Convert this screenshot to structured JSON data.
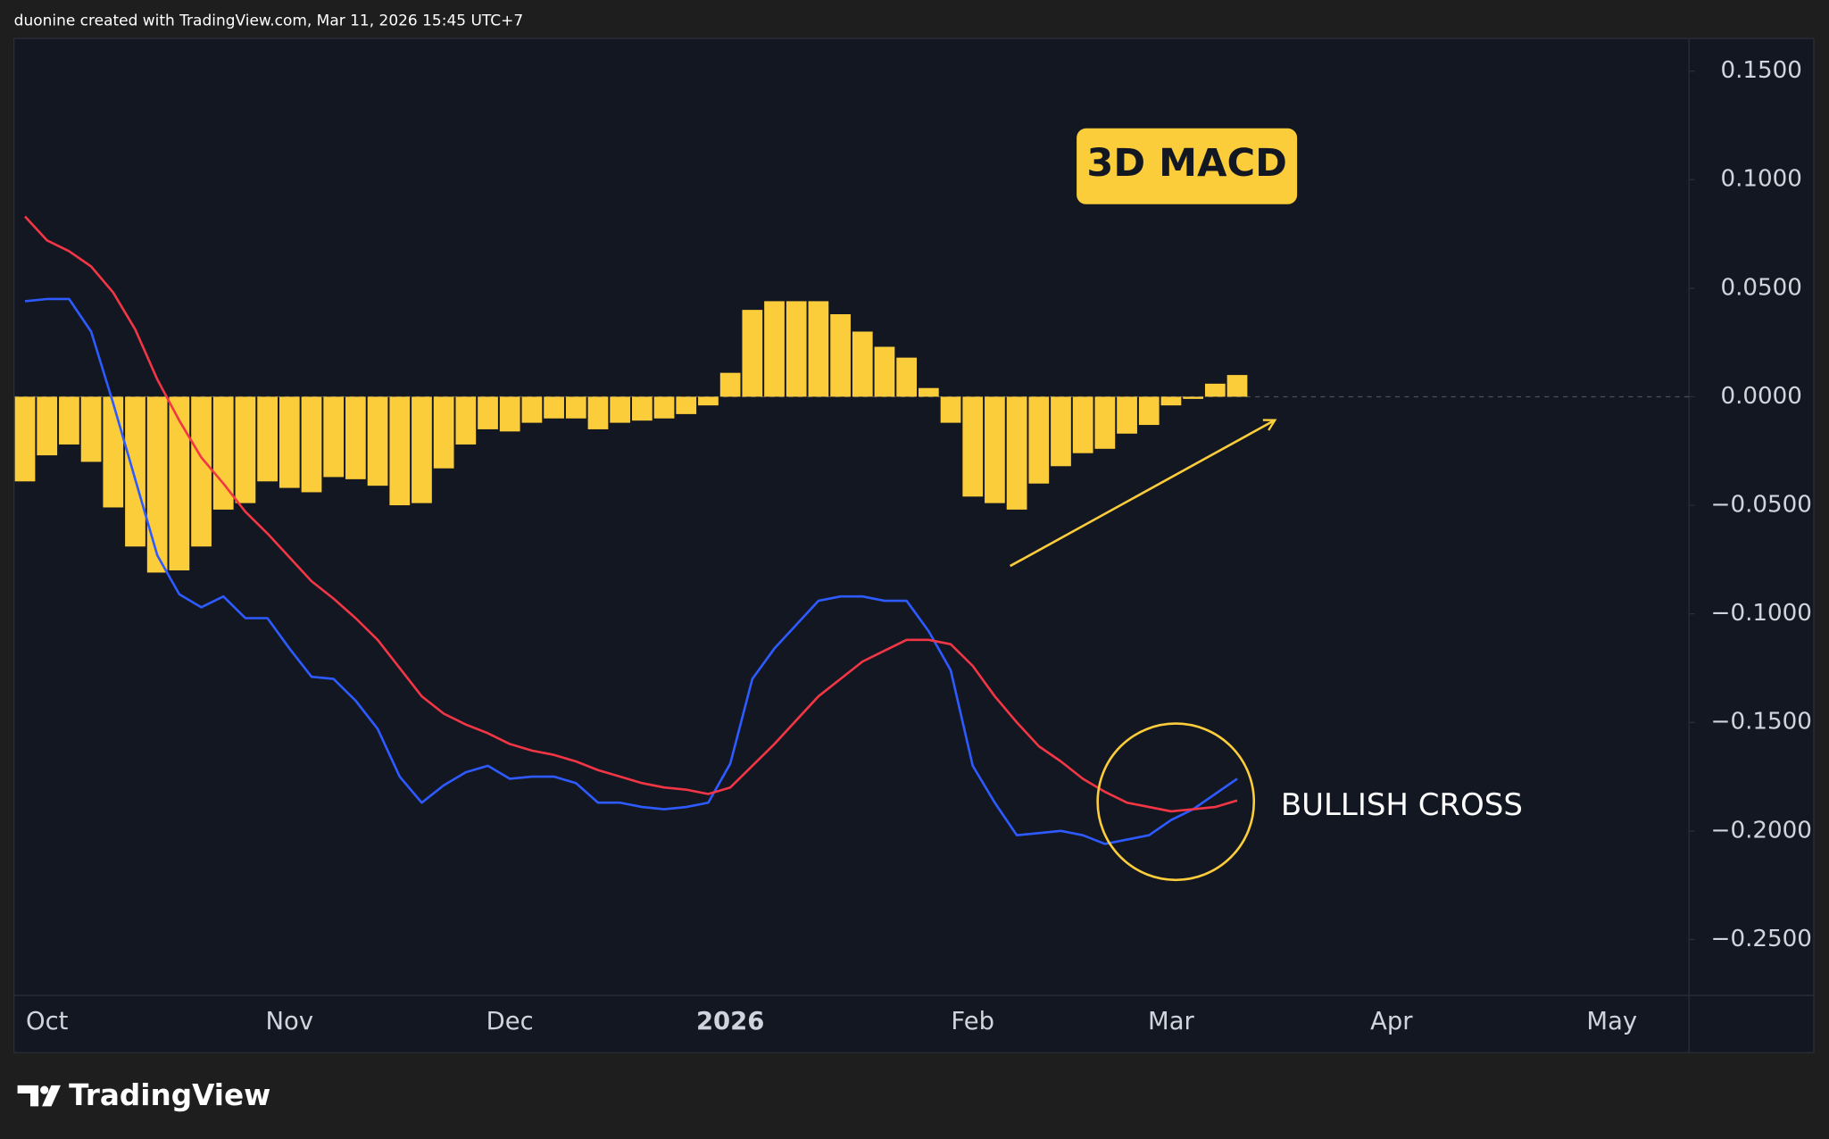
{
  "header": "duonine created with TradingView.com, Mar 11, 2026 15:45 UTC+7",
  "brand": "TradingView",
  "chart_data": {
    "type": "combo",
    "categories": [
      null,
      "Oct",
      null,
      null,
      null,
      null,
      null,
      null,
      null,
      null,
      null,
      null,
      "Nov",
      null,
      null,
      null,
      null,
      null,
      null,
      null,
      null,
      null,
      "Dec",
      null,
      null,
      null,
      null,
      null,
      null,
      null,
      null,
      null,
      "2026",
      null,
      null,
      null,
      null,
      null,
      null,
      null,
      null,
      null,
      null,
      "Feb",
      null,
      null,
      null,
      null,
      null,
      null,
      null,
      null,
      "Mar",
      null,
      null,
      null,
      null,
      null,
      null,
      null,
      null,
      null,
      "Apr",
      null,
      null,
      null,
      null,
      null,
      null,
      null,
      null,
      null,
      "May",
      null,
      null,
      null
    ],
    "series": [
      {
        "type": "bar",
        "color": "#fccd3a",
        "values": [
          -0.039,
          -0.027,
          -0.022,
          -0.03,
          -0.051,
          -0.069,
          -0.081,
          -0.08,
          -0.069,
          -0.052,
          -0.049,
          -0.039,
          -0.042,
          -0.044,
          -0.037,
          -0.038,
          -0.041,
          -0.05,
          -0.049,
          -0.033,
          -0.022,
          -0.015,
          -0.016,
          -0.012,
          -0.01,
          -0.01,
          -0.015,
          -0.012,
          -0.011,
          -0.01,
          -0.008,
          -0.004,
          0.011,
          0.04,
          0.044,
          0.044,
          0.044,
          0.038,
          0.03,
          0.023,
          0.018,
          0.004,
          -0.012,
          -0.046,
          -0.049,
          -0.052,
          -0.04,
          -0.032,
          -0.026,
          -0.024,
          -0.017,
          -0.013,
          -0.004,
          -0.001,
          0.006,
          0.01,
          null,
          null,
          null,
          null,
          null,
          null,
          null,
          null,
          null,
          null,
          null,
          null,
          null,
          null,
          null,
          null,
          null,
          null,
          null,
          null
        ]
      },
      {
        "type": "line",
        "color": "#2e5bff",
        "values": [
          0.044,
          0.045,
          0.045,
          0.03,
          -0.003,
          -0.038,
          -0.073,
          -0.091,
          -0.097,
          -0.092,
          -0.102,
          -0.102,
          -0.116,
          -0.129,
          -0.13,
          -0.14,
          -0.153,
          -0.175,
          -0.187,
          -0.179,
          -0.173,
          -0.17,
          -0.176,
          -0.175,
          -0.175,
          -0.178,
          -0.187,
          -0.187,
          -0.189,
          -0.19,
          -0.189,
          -0.187,
          -0.169,
          -0.13,
          -0.116,
          -0.105,
          -0.094,
          -0.092,
          -0.092,
          -0.094,
          -0.094,
          -0.108,
          -0.126,
          -0.17,
          -0.187,
          -0.202,
          -0.201,
          -0.2,
          -0.202,
          -0.206,
          -0.204,
          -0.202,
          -0.195,
          -0.19,
          -0.183,
          -0.176,
          null,
          null,
          null,
          null,
          null,
          null,
          null,
          null,
          null,
          null,
          null,
          null,
          null,
          null,
          null,
          null,
          null,
          null,
          null,
          null
        ]
      },
      {
        "type": "line",
        "color": "#f23645",
        "values": [
          0.083,
          0.072,
          0.067,
          0.06,
          0.048,
          0.031,
          0.008,
          -0.011,
          -0.028,
          -0.04,
          -0.053,
          -0.063,
          -0.074,
          -0.085,
          -0.093,
          -0.102,
          -0.112,
          -0.125,
          -0.138,
          -0.146,
          -0.151,
          -0.155,
          -0.16,
          -0.163,
          -0.165,
          -0.168,
          -0.172,
          -0.175,
          -0.178,
          -0.18,
          -0.181,
          -0.183,
          -0.18,
          -0.17,
          -0.16,
          -0.149,
          -0.138,
          -0.13,
          -0.122,
          -0.117,
          -0.112,
          -0.112,
          -0.114,
          -0.124,
          -0.138,
          -0.15,
          -0.161,
          -0.168,
          -0.176,
          -0.182,
          -0.187,
          -0.189,
          -0.191,
          -0.19,
          -0.189,
          -0.186,
          null,
          null,
          null,
          null,
          null,
          null,
          null,
          null,
          null,
          null,
          null,
          null,
          null,
          null,
          null,
          null,
          null,
          null,
          null,
          null
        ]
      }
    ],
    "ylim": [
      -0.2758,
      0.165
    ],
    "yticks": [
      {
        "value": 0.15,
        "label": "0.1500"
      },
      {
        "value": 0.1,
        "label": "0.1000"
      },
      {
        "value": 0.05,
        "label": "0.0500"
      },
      {
        "value": 0,
        "label": "0.0000"
      },
      {
        "value": -0.05,
        "label": "−0.0500"
      },
      {
        "value": -0.1,
        "label": "−0.1000"
      },
      {
        "value": -0.15,
        "label": "−0.1500"
      },
      {
        "value": -0.2,
        "label": "−0.2000"
      },
      {
        "value": -0.25,
        "label": "−0.2500"
      }
    ],
    "grid": false,
    "annotations": [
      "3D MACD",
      "BULLISH CROSS"
    ]
  }
}
